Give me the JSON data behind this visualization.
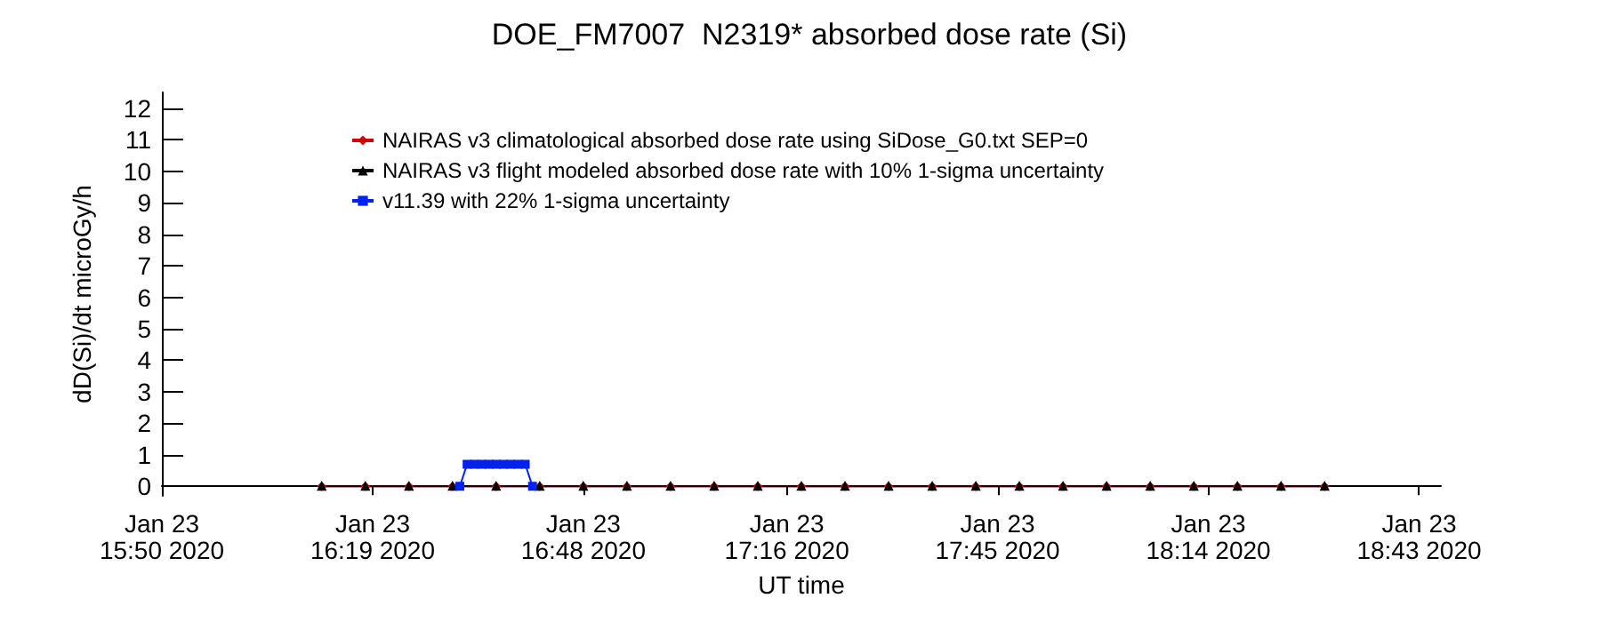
{
  "chart_data": {
    "type": "line",
    "title": "DOE_FM7007  N2319* absorbed dose rate (Si)",
    "xlabel": "UT time",
    "ylabel": "dD(Si)/dt microGy/h",
    "xlim": [
      "2020-01-23T15:50",
      "2020-01-23T18:46"
    ],
    "ylim": [
      -0.3,
      12.5
    ],
    "xticks": [
      {
        "value": "2020-01-23T15:50",
        "label": "Jan 23\n15:50 2020"
      },
      {
        "value": "2020-01-23T16:19",
        "label": "Jan 23\n16:19 2020"
      },
      {
        "value": "2020-01-23T16:48",
        "label": "Jan 23\n16:48 2020"
      },
      {
        "value": "2020-01-23T17:16",
        "label": "Jan 23\n17:16 2020"
      },
      {
        "value": "2020-01-23T17:45",
        "label": "Jan 23\n17:45 2020"
      },
      {
        "value": "2020-01-23T18:14",
        "label": "Jan 23\n18:14 2020"
      },
      {
        "value": "2020-01-23T18:43",
        "label": "Jan 23\n18:43 2020"
      }
    ],
    "yticks": [
      0,
      1,
      2,
      3,
      4,
      5,
      6,
      7,
      8,
      9,
      10,
      11,
      12
    ],
    "grid": false,
    "legend": "top left",
    "series": [
      {
        "name": "NAIRAS v3 climatological absorbed dose rate using SiDose_G0.txt SEP=0",
        "color": "#cc0000",
        "marker": "diamond",
        "x": [
          "2020-01-23T16:12",
          "2020-01-23T16:18",
          "2020-01-23T16:24",
          "2020-01-23T16:30",
          "2020-01-23T16:36",
          "2020-01-23T16:42",
          "2020-01-23T16:48",
          "2020-01-23T16:54",
          "2020-01-23T17:00",
          "2020-01-23T17:06",
          "2020-01-23T17:12",
          "2020-01-23T17:18",
          "2020-01-23T17:24",
          "2020-01-23T17:30",
          "2020-01-23T17:36",
          "2020-01-23T17:42",
          "2020-01-23T17:48",
          "2020-01-23T17:54",
          "2020-01-23T18:00",
          "2020-01-23T18:06",
          "2020-01-23T18:12",
          "2020-01-23T18:18",
          "2020-01-23T18:24",
          "2020-01-23T18:30"
        ],
        "values": [
          0,
          0,
          0,
          0,
          0,
          0,
          0,
          0,
          0,
          0,
          0,
          0,
          0,
          0,
          0,
          0,
          0,
          0,
          0,
          0,
          0,
          0,
          0,
          0
        ]
      },
      {
        "name": "NAIRAS v3 flight modeled absorbed dose rate with 10% 1-sigma uncertainty",
        "color": "#000000",
        "marker": "triangle",
        "x": [
          "2020-01-23T16:12",
          "2020-01-23T16:18",
          "2020-01-23T16:24",
          "2020-01-23T16:30",
          "2020-01-23T16:36",
          "2020-01-23T16:42",
          "2020-01-23T16:48",
          "2020-01-23T16:54",
          "2020-01-23T17:00",
          "2020-01-23T17:06",
          "2020-01-23T17:12",
          "2020-01-23T17:18",
          "2020-01-23T17:24",
          "2020-01-23T17:30",
          "2020-01-23T17:36",
          "2020-01-23T17:42",
          "2020-01-23T17:48",
          "2020-01-23T17:54",
          "2020-01-23T18:00",
          "2020-01-23T18:06",
          "2020-01-23T18:12",
          "2020-01-23T18:18",
          "2020-01-23T18:24",
          "2020-01-23T18:30"
        ],
        "values": [
          0,
          0,
          0,
          0,
          0,
          0,
          0,
          0,
          0,
          0,
          0,
          0,
          0,
          0,
          0,
          0,
          0,
          0,
          0,
          0,
          0,
          0,
          0,
          0
        ]
      },
      {
        "name": "v11.39 with 22% 1-sigma uncertainty",
        "color": "#0022ee",
        "marker": "square",
        "x": [
          "2020-01-23T16:31",
          "2020-01-23T16:32",
          "2020-01-23T16:33",
          "2020-01-23T16:34",
          "2020-01-23T16:35",
          "2020-01-23T16:36",
          "2020-01-23T16:37",
          "2020-01-23T16:38",
          "2020-01-23T16:39",
          "2020-01-23T16:40",
          "2020-01-23T16:41"
        ],
        "values": [
          0,
          0.7,
          0.7,
          0.7,
          0.7,
          0.7,
          0.7,
          0.7,
          0.7,
          0.7,
          0
        ]
      }
    ]
  }
}
